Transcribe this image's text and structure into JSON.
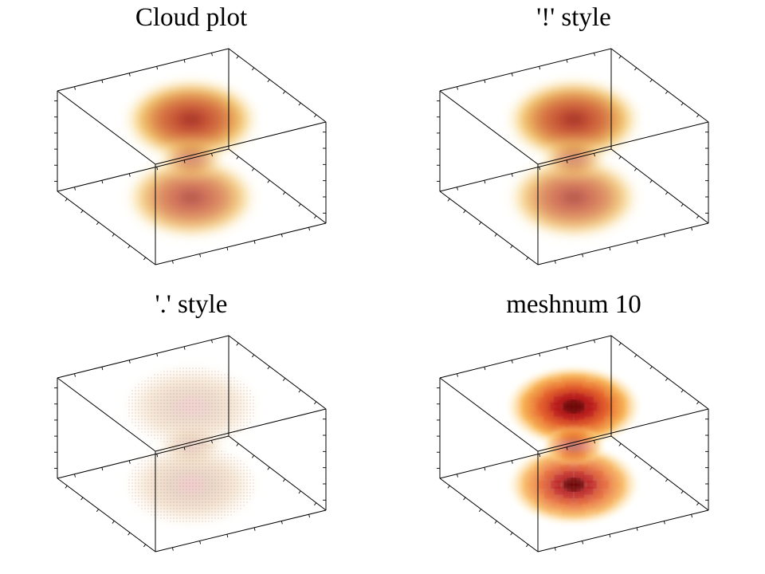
{
  "chart_data": [
    {
      "type": "cloud",
      "title": "Cloud plot",
      "style": "default",
      "colormap": [
        "#fffbe0",
        "#f3c25a",
        "#d46a2c",
        "#c03a1a",
        "#8a0a0a"
      ],
      "lobes": [
        {
          "name": "upper",
          "peak": 0.95
        },
        {
          "name": "lower",
          "peak": 0.78
        }
      ]
    },
    {
      "type": "cloud",
      "title": "'!' style",
      "style": "!",
      "colormap": [
        "#fffbe0",
        "#f3c25a",
        "#d46a2c",
        "#c03a1a",
        "#8a0a0a"
      ],
      "lobes": [
        {
          "name": "upper",
          "peak": 0.95
        },
        {
          "name": "lower",
          "peak": 0.78
        }
      ]
    },
    {
      "type": "cloud",
      "title": "'.' style",
      "style": ".",
      "colormap": [
        "#fbf0d8",
        "#e9c59a",
        "#c89b7a",
        "#e07a8a"
      ],
      "lobes": [
        {
          "name": "upper",
          "peak": 0.55
        },
        {
          "name": "lower",
          "peak": 0.6
        }
      ]
    },
    {
      "type": "cloud",
      "title": "meshnum 10",
      "style": "meshnum",
      "meshnum": 10,
      "colormap": [
        "#fff6c8",
        "#f8b04a",
        "#e45a1e",
        "#b81212",
        "#6e0606"
      ],
      "lobes": [
        {
          "name": "upper",
          "peak": 1.0
        },
        {
          "name": "lower",
          "peak": 0.85
        }
      ]
    }
  ]
}
